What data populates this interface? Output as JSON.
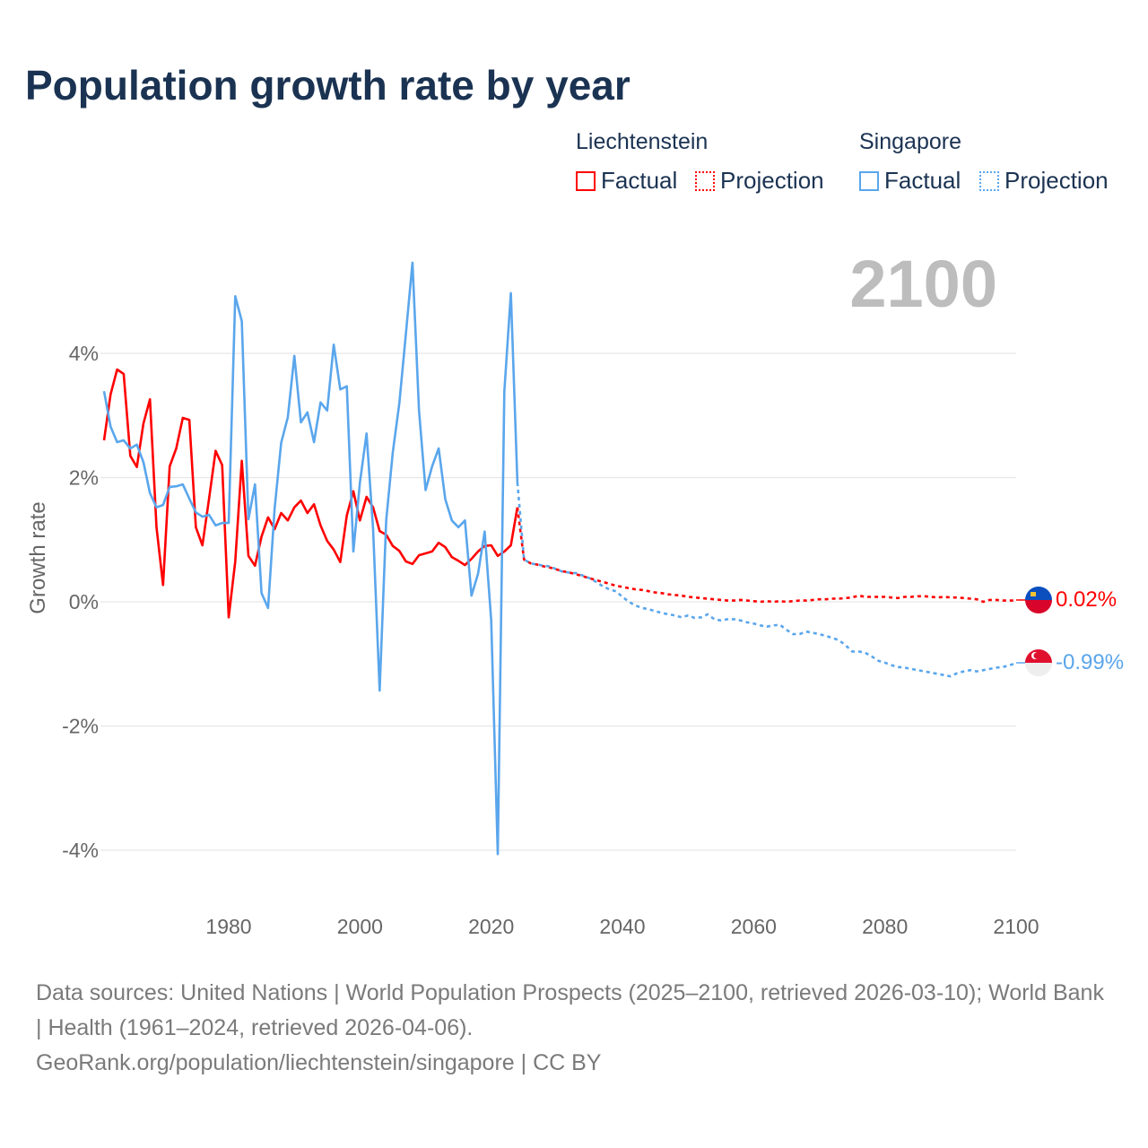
{
  "title": "Population growth rate by year",
  "legend": {
    "groups": [
      {
        "name": "Liechtenstein",
        "factual": "Factual",
        "projection": "Projection",
        "color": "#ff0000"
      },
      {
        "name": "Singapore",
        "factual": "Factual",
        "projection": "Projection",
        "color": "#5aa6ec"
      }
    ]
  },
  "year_watermark": "2100",
  "end_labels": {
    "liechtenstein": "0.02%",
    "singapore": "-0.99%"
  },
  "footer": {
    "sources": "Data sources: United Nations | World Population Prospects (2025–2100, retrieved 2026-03-10); World Bank | Health (1961–2024, retrieved 2026-04-06).",
    "link": "GeoRank.org/population/liechtenstein/singapore | CC BY"
  },
  "chart_data": {
    "type": "line",
    "title": "Population growth rate by year",
    "xlabel": "",
    "ylabel": "Growth rate",
    "xlim": [
      1961,
      2100
    ],
    "ylim": [
      -4.5,
      5.5
    ],
    "x_ticks": [
      1980,
      2000,
      2020,
      2040,
      2060,
      2080,
      2100
    ],
    "x_tick_labels": [
      "1980",
      "2000",
      "2020",
      "2040",
      "2060",
      "2080",
      "2100"
    ],
    "y_ticks": [
      4,
      2,
      0,
      -2,
      -4
    ],
    "y_tick_labels": [
      "4%",
      "2%",
      "0%",
      "-2%",
      "-4%"
    ],
    "grid": true,
    "legend_position": "top-right",
    "series": [
      {
        "name": "Liechtenstein Factual",
        "color": "#ff0000",
        "style": "solid",
        "x_start": 1961,
        "values": [
          2.6,
          3.34,
          3.74,
          3.67,
          2.35,
          2.17,
          2.87,
          3.26,
          1.2,
          0.27,
          2.18,
          2.47,
          2.96,
          2.93,
          1.2,
          0.91,
          1.66,
          2.43,
          2.2,
          -0.25,
          0.65,
          2.27,
          0.74,
          0.58,
          1.05,
          1.36,
          1.17,
          1.43,
          1.31,
          1.52,
          1.63,
          1.43,
          1.57,
          1.23,
          0.98,
          0.84,
          0.64,
          1.39,
          1.78,
          1.31,
          1.69,
          1.52,
          1.14,
          1.08,
          0.9,
          0.82,
          0.65,
          0.61,
          0.75,
          0.78,
          0.81,
          0.95,
          0.88,
          0.72,
          0.66,
          0.59,
          0.69,
          0.81,
          0.9,
          0.91,
          0.74,
          0.81,
          0.91,
          1.52
        ]
      },
      {
        "name": "Liechtenstein Projection",
        "color": "#ff0000",
        "style": "dotted",
        "x_start": 2025,
        "values": [
          0.68,
          0.62,
          0.6,
          0.57,
          0.55,
          0.52,
          0.49,
          0.47,
          0.44,
          0.41,
          0.38,
          0.35,
          0.32,
          0.29,
          0.26,
          0.24,
          0.22,
          0.2,
          0.19,
          0.17,
          0.15,
          0.14,
          0.12,
          0.11,
          0.1,
          0.08,
          0.07,
          0.06,
          0.05,
          0.04,
          0.03,
          0.02,
          0.02,
          0.03,
          0.02,
          0.01,
          0.0,
          0.01,
          0.0,
          0.01,
          0.0,
          0.01,
          0.02,
          0.02,
          0.03,
          0.04,
          0.04,
          0.05,
          0.05,
          0.06,
          0.07,
          0.1,
          0.08,
          0.08,
          0.08,
          0.08,
          0.07,
          0.06,
          0.08,
          0.08,
          0.09,
          0.09,
          0.08,
          0.07,
          0.08,
          0.07,
          0.07,
          0.06,
          0.05,
          0.04,
          0.0,
          0.03,
          0.03,
          0.02,
          0.02,
          0.02
        ]
      },
      {
        "name": "Singapore Factual",
        "color": "#5aa6ec",
        "style": "solid",
        "x_start": 1961,
        "values": [
          3.39,
          2.82,
          2.57,
          2.6,
          2.47,
          2.53,
          2.25,
          1.75,
          1.52,
          1.56,
          1.85,
          1.86,
          1.89,
          1.66,
          1.44,
          1.37,
          1.4,
          1.23,
          1.27,
          1.27,
          4.92,
          4.52,
          1.33,
          1.89,
          0.14,
          -0.1,
          1.5,
          2.56,
          2.97,
          3.96,
          2.89,
          3.05,
          2.57,
          3.21,
          3.08,
          4.14,
          3.42,
          3.47,
          0.81,
          1.92,
          2.71,
          1.17,
          -1.43,
          1.31,
          2.4,
          3.19,
          4.32,
          5.46,
          3.08,
          1.8,
          2.18,
          2.47,
          1.65,
          1.31,
          1.2,
          1.31,
          0.1,
          0.45,
          1.13,
          -0.3,
          -4.06,
          3.38,
          4.97,
          1.92
        ]
      },
      {
        "name": "Singapore Projection",
        "color": "#5aa6ec",
        "style": "dotted",
        "x_start": 2025,
        "values": [
          0.68,
          0.62,
          0.6,
          0.58,
          0.57,
          0.52,
          0.48,
          0.47,
          0.46,
          0.42,
          0.38,
          0.32,
          0.25,
          0.2,
          0.17,
          0.08,
          0.0,
          -0.06,
          -0.1,
          -0.12,
          -0.15,
          -0.18,
          -0.2,
          -0.22,
          -0.25,
          -0.22,
          -0.26,
          -0.25,
          -0.2,
          -0.28,
          -0.3,
          -0.28,
          -0.28,
          -0.3,
          -0.33,
          -0.35,
          -0.38,
          -0.4,
          -0.38,
          -0.37,
          -0.45,
          -0.52,
          -0.52,
          -0.48,
          -0.5,
          -0.52,
          -0.55,
          -0.58,
          -0.62,
          -0.7,
          -0.8,
          -0.8,
          -0.82,
          -0.88,
          -0.95,
          -0.98,
          -1.02,
          -1.05,
          -1.06,
          -1.08,
          -1.1,
          -1.12,
          -1.14,
          -1.16,
          -1.18,
          -1.2,
          -1.15,
          -1.12,
          -1.1,
          -1.12,
          -1.1,
          -1.08,
          -1.06,
          -1.05,
          -1.02,
          -0.99
        ]
      }
    ]
  }
}
